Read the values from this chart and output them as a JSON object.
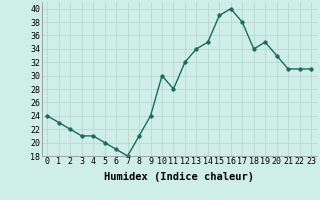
{
  "x": [
    0,
    1,
    2,
    3,
    4,
    5,
    6,
    7,
    8,
    9,
    10,
    11,
    12,
    13,
    14,
    15,
    16,
    17,
    18,
    19,
    20,
    21,
    22,
    23
  ],
  "y": [
    24,
    23,
    22,
    21,
    21,
    20,
    19,
    18,
    21,
    24,
    30,
    28,
    32,
    34,
    35,
    39,
    40,
    38,
    34,
    35,
    33,
    31,
    31,
    31
  ],
  "line_color": "#1a6b5a",
  "marker_color": "#1a6b5a",
  "bg_color": "#d0eee8",
  "grid_color": "#b8d8d0",
  "xlabel": "Humidex (Indice chaleur)",
  "ylim": [
    18,
    41
  ],
  "xlim": [
    -0.5,
    23.5
  ],
  "yticks": [
    18,
    20,
    22,
    24,
    26,
    28,
    30,
    32,
    34,
    36,
    38,
    40
  ],
  "xtick_labels": [
    "0",
    "1",
    "2",
    "3",
    "4",
    "5",
    "6",
    "7",
    "8",
    "9",
    "10",
    "11",
    "12",
    "13",
    "14",
    "15",
    "16",
    "17",
    "18",
    "19",
    "20",
    "21",
    "22",
    "23"
  ],
  "xlabel_fontsize": 7.5,
  "tick_fontsize": 6,
  "line_width": 1.0,
  "marker_size": 2.5
}
